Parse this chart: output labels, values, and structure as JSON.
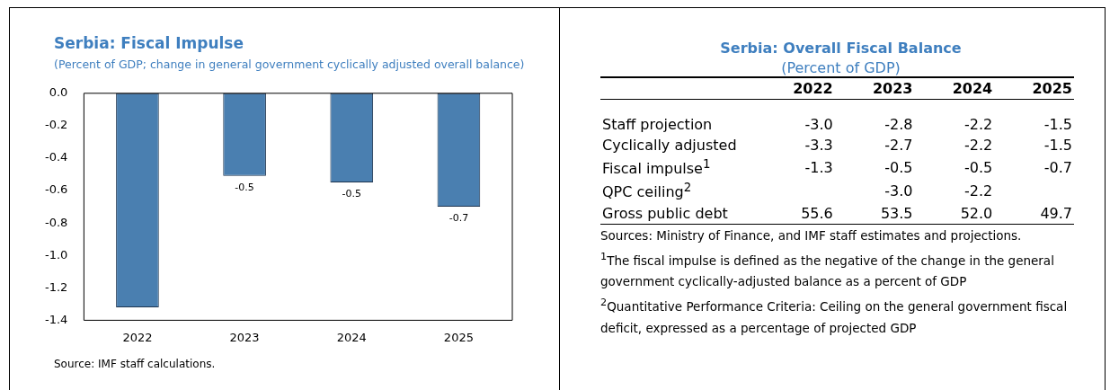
{
  "chart_data": [
    {
      "type": "bar",
      "title": "Serbia: Fiscal Impulse",
      "subtitle": "(Percent of GDP; change in general government cyclically adjusted overall balance)",
      "categories": [
        "2022",
        "2023",
        "2024",
        "2025"
      ],
      "series": [
        {
          "color": "#4a7fb0",
          "values": [
            -1.32,
            -0.51,
            -0.55,
            -0.7
          ],
          "value_labels": [
            null,
            "-0.5",
            "-0.5",
            "-0.7"
          ]
        }
      ],
      "ylim": [
        -1.4,
        0
      ],
      "yticks": [
        {
          "value": -1.4,
          "label": "-1.4"
        },
        {
          "value": -1.2,
          "label": "-1.2"
        },
        {
          "value": -1,
          "label": "-1.0"
        },
        -0.8,
        -0.6,
        -0.4,
        -0.2,
        {
          "value": 0,
          "label": "0.0"
        }
      ],
      "grid": false,
      "legend": false,
      "annotations": [
        "Source: IMF staff calculations."
      ]
    },
    {
      "type": "heatmap",
      "title": "Serbia: Overall Fiscal Balance",
      "subtitle": "(Percent of GDP)",
      "categories": [
        "2022",
        "2023",
        "2024",
        "2025"
      ],
      "y_categories": [
        "Staff projection",
        "Cyclically adjusted",
        "Fiscal impulse$^{1}$",
        "QPC ceiling$^{2}$",
        "Gross public debt"
      ],
      "cells": [
        [
          -3.0,
          -2.8,
          -2.2,
          -1.5
        ],
        [
          -3.3,
          -2.7,
          -2.2,
          -1.5
        ],
        [
          -1.3,
          -0.5,
          -0.5,
          -0.7
        ],
        [
          null,
          -3.0,
          -2.2,
          null
        ],
        [
          55.6,
          53.5,
          52.0,
          49.7
        ]
      ],
      "cell_labels": [
        [
          "-3.0",
          "-2.8",
          "-2.2",
          "-1.5"
        ],
        [
          "-3.3",
          "-2.7",
          "-2.2",
          "-1.5"
        ],
        [
          "-1.3",
          "-0.5",
          "-0.5",
          "-0.7"
        ],
        [
          null,
          "-3.0",
          "-2.2",
          null
        ],
        [
          "55.6",
          "53.5",
          "52.0",
          "49.7"
        ]
      ],
      "annotations": [
        "Sources: Ministry of Finance, and IMF staff estimates and projections.",
        "$^{1}$The fiscal impulse is defined as the negative of the change in the general government cyclically-adjusted balance as a percent of GDP",
        "$^{2}$Quantitative Performance Criteria: Ceiling on the general government fiscal deficit, expressed as a percentage of projected GDP"
      ]
    }
  ]
}
